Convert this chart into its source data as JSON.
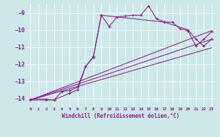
{
  "background_color": "#cce8e8",
  "grid_color": "#aadddd",
  "line_color": "#882288",
  "xlabel": "Windchill (Refroidissement éolien,°C)",
  "xlim": [
    -0.5,
    23.5
  ],
  "ylim": [
    -14.5,
    -8.5
  ],
  "yticks": [
    -14,
    -13,
    -12,
    -11,
    -10,
    -9
  ],
  "xticks": [
    0,
    1,
    2,
    3,
    4,
    5,
    6,
    7,
    8,
    9,
    10,
    11,
    12,
    13,
    14,
    15,
    16,
    17,
    18,
    19,
    20,
    21,
    22,
    23
  ],
  "series": [
    {
      "x": [
        0,
        2,
        3,
        4,
        5,
        6,
        7,
        8,
        9,
        10,
        11,
        12,
        13,
        14,
        15,
        16,
        17,
        18,
        19,
        20,
        21,
        22,
        23
      ],
      "y": [
        -14.05,
        -14.05,
        -14.1,
        -13.6,
        -13.55,
        -13.35,
        -12.15,
        -11.55,
        -9.15,
        -9.8,
        -9.25,
        -9.2,
        -9.15,
        -9.15,
        -8.6,
        -9.35,
        -9.55,
        -9.55,
        -9.95,
        -10.05,
        -10.95,
        -10.55,
        -10.1
      ],
      "marker": true
    },
    {
      "x": [
        0,
        2,
        3,
        5,
        6,
        7,
        8,
        9,
        17,
        20,
        21,
        22,
        23
      ],
      "y": [
        -14.1,
        -14.1,
        -14.1,
        -13.7,
        -13.5,
        -12.15,
        -11.6,
        -9.15,
        -9.55,
        -10.0,
        -10.55,
        -10.95,
        -10.55
      ],
      "marker": true
    },
    {
      "x": [
        0,
        23
      ],
      "y": [
        -14.1,
        -10.05
      ],
      "marker": false
    },
    {
      "x": [
        0,
        23
      ],
      "y": [
        -14.1,
        -10.55
      ],
      "marker": false
    },
    {
      "x": [
        0,
        23
      ],
      "y": [
        -14.1,
        -11.05
      ],
      "marker": false
    }
  ]
}
